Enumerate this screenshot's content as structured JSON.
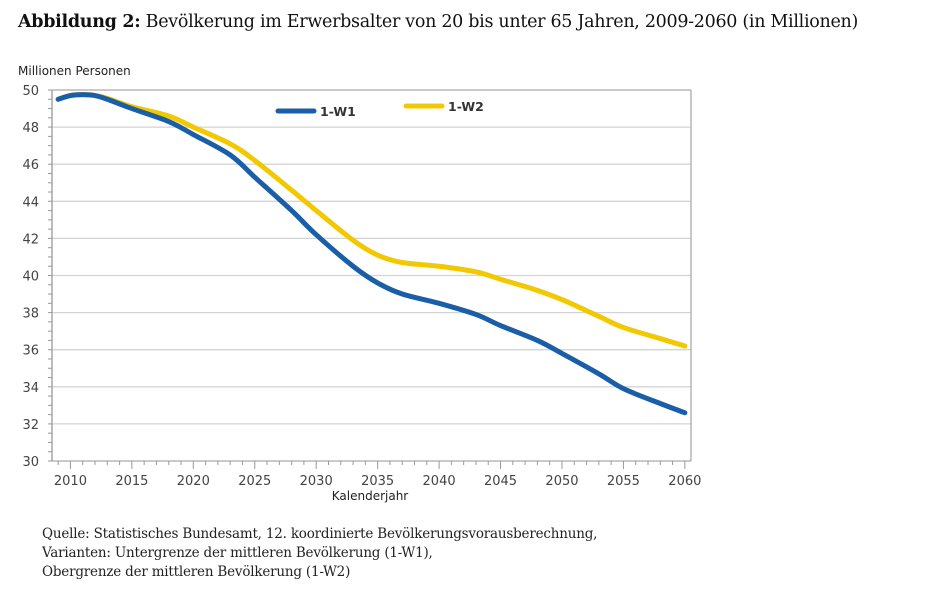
{
  "title": {
    "prefix": "Abbildung 2:",
    "text": "Bevölkerung im Erwerbsalter von 20 bis unter 65 Jahren, 2009-2060 (in Millionen)"
  },
  "source": [
    "Quelle: Statistisches Bundesamt, 12. koordinierte Bevölkerungsvorausberechnung,",
    "Varianten: Untergrenze der mittleren Bevölkerung (1-W1),",
    "Obergrenze der mittleren Bevölkerung (1-W2)"
  ],
  "chart_data": {
    "type": "line",
    "title": "",
    "xlabel": "Kalenderjahr",
    "ylabel": "Millionen Personen",
    "xlim": [
      2008.5,
      2060.5
    ],
    "ylim": [
      30,
      50
    ],
    "xticks": [
      2010,
      2015,
      2020,
      2025,
      2030,
      2035,
      2040,
      2045,
      2050,
      2055,
      2060
    ],
    "yticks": [
      30,
      32,
      34,
      36,
      38,
      40,
      42,
      44,
      46,
      48,
      50
    ],
    "grid": "horizontal",
    "legend_placement": "top",
    "series": [
      {
        "name": "1-W1",
        "color": "#1a5ea8",
        "x": [
          2009,
          2010,
          2011,
          2012,
          2013,
          2015,
          2018,
          2020,
          2023,
          2025,
          2028,
          2030,
          2033,
          2035,
          2037,
          2040,
          2043,
          2045,
          2048,
          2050,
          2053,
          2055,
          2058,
          2060
        ],
        "y": [
          49.5,
          49.7,
          49.75,
          49.7,
          49.5,
          49.0,
          48.3,
          47.6,
          46.5,
          45.3,
          43.5,
          42.2,
          40.5,
          39.6,
          39.0,
          38.5,
          37.9,
          37.3,
          36.5,
          35.8,
          34.7,
          33.9,
          33.1,
          32.6
        ]
      },
      {
        "name": "1-W2",
        "color": "#f2c800",
        "x": [
          2009,
          2010,
          2011,
          2012,
          2013,
          2015,
          2018,
          2020,
          2023,
          2025,
          2028,
          2030,
          2033,
          2035,
          2037,
          2040,
          2043,
          2045,
          2048,
          2050,
          2053,
          2055,
          2058,
          2060
        ],
        "y": [
          49.5,
          49.7,
          49.75,
          49.7,
          49.55,
          49.1,
          48.6,
          48.0,
          47.1,
          46.2,
          44.6,
          43.5,
          41.9,
          41.1,
          40.7,
          40.5,
          40.2,
          39.8,
          39.2,
          38.7,
          37.8,
          37.2,
          36.6,
          36.2
        ]
      }
    ]
  }
}
